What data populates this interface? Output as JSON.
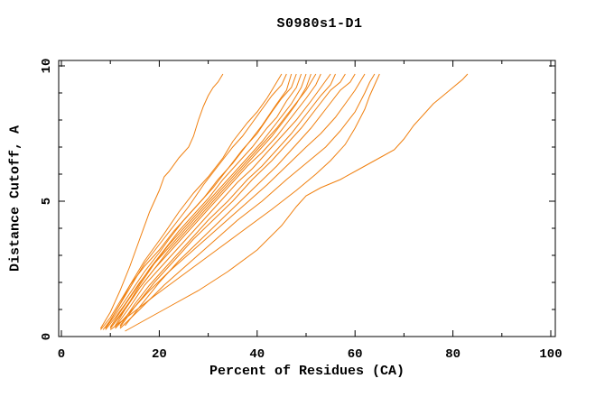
{
  "chart_data": {
    "type": "line",
    "title": "S0980s1-D1",
    "xlabel": "Percent of Residues (CA)",
    "ylabel": "Distance Cutoff, A",
    "xlim": [
      0,
      100
    ],
    "ylim": [
      0,
      10
    ],
    "x_major_ticks": [
      0,
      20,
      40,
      60,
      80,
      100
    ],
    "x_minor_ticks": [
      10,
      30,
      50,
      70,
      90
    ],
    "y_major_ticks": [
      0,
      5,
      10
    ],
    "y_minor_ticks": [
      1,
      2,
      3,
      4,
      6,
      7,
      8,
      9
    ],
    "grid": false,
    "legend": "none",
    "frame_color": "#000000",
    "line_color": "#F08010",
    "series": [
      [
        [
          8,
          0.3
        ],
        [
          9,
          0.6
        ],
        [
          10,
          0.9
        ],
        [
          12,
          1.7
        ],
        [
          14,
          2.6
        ],
        [
          16,
          3.6
        ],
        [
          18,
          4.6
        ],
        [
          20,
          5.4
        ],
        [
          21,
          5.9
        ],
        [
          22,
          6.1
        ],
        [
          24,
          6.6
        ],
        [
          26,
          7.0
        ],
        [
          27,
          7.4
        ],
        [
          28,
          8.0
        ],
        [
          29,
          8.5
        ],
        [
          30,
          8.9
        ],
        [
          31,
          9.2
        ],
        [
          32,
          9.4
        ],
        [
          33,
          9.7
        ]
      ],
      [
        [
          8,
          0.25
        ],
        [
          10,
          0.7
        ],
        [
          11,
          1.0
        ],
        [
          13,
          1.6
        ],
        [
          15,
          2.2
        ],
        [
          17,
          2.8
        ],
        [
          19,
          3.3
        ],
        [
          21,
          3.8
        ],
        [
          24,
          4.6
        ],
        [
          27,
          5.3
        ],
        [
          30,
          5.9
        ],
        [
          33,
          6.6
        ],
        [
          35,
          7.2
        ],
        [
          38,
          7.9
        ],
        [
          40,
          8.3
        ],
        [
          42,
          8.8
        ],
        [
          43,
          9.1
        ],
        [
          44,
          9.4
        ],
        [
          45,
          9.7
        ]
      ],
      [
        [
          9,
          0.3
        ],
        [
          11,
          0.9
        ],
        [
          13,
          1.5
        ],
        [
          15,
          2.1
        ],
        [
          17,
          2.7
        ],
        [
          20,
          3.4
        ],
        [
          23,
          4.1
        ],
        [
          26,
          4.8
        ],
        [
          29,
          5.6
        ],
        [
          32,
          6.3
        ],
        [
          35,
          7.0
        ],
        [
          37,
          7.4
        ],
        [
          39,
          7.9
        ],
        [
          41,
          8.4
        ],
        [
          43,
          8.9
        ],
        [
          45,
          9.3
        ],
        [
          46,
          9.7
        ]
      ],
      [
        [
          8.5,
          0.25
        ],
        [
          10,
          0.6
        ],
        [
          12,
          1.2
        ],
        [
          14,
          1.9
        ],
        [
          17,
          2.6
        ],
        [
          20,
          3.2
        ],
        [
          23,
          3.9
        ],
        [
          26,
          4.5
        ],
        [
          29,
          5.1
        ],
        [
          32,
          5.8
        ],
        [
          35,
          6.4
        ],
        [
          38,
          7.1
        ],
        [
          41,
          7.8
        ],
        [
          44,
          8.6
        ],
        [
          46,
          9.1
        ],
        [
          47,
          9.7
        ]
      ],
      [
        [
          9,
          0.3
        ],
        [
          11,
          0.8
        ],
        [
          14,
          1.6
        ],
        [
          17,
          2.4
        ],
        [
          20,
          3.1
        ],
        [
          22,
          3.6
        ],
        [
          25,
          4.3
        ],
        [
          28,
          4.9
        ],
        [
          31,
          5.5
        ],
        [
          34,
          6.2
        ],
        [
          37,
          6.9
        ],
        [
          40,
          7.5
        ],
        [
          43,
          8.3
        ],
        [
          45,
          8.8
        ],
        [
          47,
          9.2
        ],
        [
          48,
          9.7
        ]
      ],
      [
        [
          10,
          0.35
        ],
        [
          12,
          0.9
        ],
        [
          15,
          1.7
        ],
        [
          18,
          2.5
        ],
        [
          21,
          3.2
        ],
        [
          24,
          3.9
        ],
        [
          27,
          4.5
        ],
        [
          30,
          5.1
        ],
        [
          33,
          5.8
        ],
        [
          36,
          6.4
        ],
        [
          39,
          7.0
        ],
        [
          42,
          7.7
        ],
        [
          44,
          8.1
        ],
        [
          46,
          8.7
        ],
        [
          48,
          9.2
        ],
        [
          49,
          9.7
        ]
      ],
      [
        [
          10,
          0.3
        ],
        [
          12,
          0.8
        ],
        [
          14,
          1.3
        ],
        [
          16,
          1.9
        ],
        [
          19,
          2.7
        ],
        [
          22,
          3.4
        ],
        [
          25,
          4.0
        ],
        [
          28,
          4.6
        ],
        [
          31,
          5.2
        ],
        [
          34,
          5.8
        ],
        [
          38,
          6.6
        ],
        [
          41,
          7.2
        ],
        [
          44,
          7.9
        ],
        [
          47,
          8.6
        ],
        [
          49,
          9.2
        ],
        [
          50,
          9.7
        ]
      ],
      [
        [
          11,
          0.4
        ],
        [
          13,
          1.0
        ],
        [
          16,
          1.8
        ],
        [
          19,
          2.5
        ],
        [
          22,
          3.2
        ],
        [
          25,
          3.8
        ],
        [
          28,
          4.4
        ],
        [
          31,
          5.0
        ],
        [
          34,
          5.6
        ],
        [
          37,
          6.2
        ],
        [
          40,
          6.8
        ],
        [
          43,
          7.4
        ],
        [
          46,
          8.1
        ],
        [
          48,
          8.6
        ],
        [
          50,
          9.2
        ],
        [
          51,
          9.7
        ]
      ],
      [
        [
          9,
          0.25
        ],
        [
          11,
          0.7
        ],
        [
          13,
          1.2
        ],
        [
          16,
          2.0
        ],
        [
          19,
          2.7
        ],
        [
          23,
          3.5
        ],
        [
          27,
          4.3
        ],
        [
          31,
          5.1
        ],
        [
          35,
          5.9
        ],
        [
          38,
          6.5
        ],
        [
          41,
          7.1
        ],
        [
          44,
          7.7
        ],
        [
          47,
          8.4
        ],
        [
          50,
          9.1
        ],
        [
          52,
          9.7
        ]
      ],
      [
        [
          10,
          0.3
        ],
        [
          13,
          1.0
        ],
        [
          16,
          1.8
        ],
        [
          19,
          2.5
        ],
        [
          23,
          3.3
        ],
        [
          27,
          4.1
        ],
        [
          31,
          4.9
        ],
        [
          35,
          5.7
        ],
        [
          38,
          6.3
        ],
        [
          41,
          6.8
        ],
        [
          44,
          7.4
        ],
        [
          47,
          8.1
        ],
        [
          50,
          8.8
        ],
        [
          52,
          9.3
        ],
        [
          53,
          9.7
        ]
      ],
      [
        [
          11,
          0.35
        ],
        [
          14,
          1.1
        ],
        [
          17,
          1.9
        ],
        [
          21,
          2.7
        ],
        [
          25,
          3.5
        ],
        [
          29,
          4.3
        ],
        [
          33,
          5.1
        ],
        [
          36,
          5.7
        ],
        [
          39,
          6.2
        ],
        [
          42,
          6.8
        ],
        [
          45,
          7.4
        ],
        [
          48,
          8.0
        ],
        [
          51,
          8.7
        ],
        [
          53,
          9.2
        ],
        [
          55,
          9.7
        ]
      ],
      [
        [
          12,
          0.4
        ],
        [
          15,
          1.2
        ],
        [
          18,
          1.9
        ],
        [
          22,
          2.7
        ],
        [
          26,
          3.5
        ],
        [
          30,
          4.3
        ],
        [
          34,
          5.0
        ],
        [
          38,
          5.8
        ],
        [
          41,
          6.3
        ],
        [
          44,
          6.9
        ],
        [
          47,
          7.5
        ],
        [
          50,
          8.2
        ],
        [
          53,
          8.9
        ],
        [
          55,
          9.3
        ],
        [
          56,
          9.7
        ]
      ],
      [
        [
          12,
          0.35
        ],
        [
          15,
          1.1
        ],
        [
          19,
          2.0
        ],
        [
          23,
          2.8
        ],
        [
          27,
          3.6
        ],
        [
          31,
          4.3
        ],
        [
          35,
          5.0
        ],
        [
          39,
          5.8
        ],
        [
          43,
          6.5
        ],
        [
          46,
          7.1
        ],
        [
          49,
          7.7
        ],
        [
          52,
          8.4
        ],
        [
          55,
          9.1
        ],
        [
          57,
          9.4
        ],
        [
          58,
          9.7
        ]
      ],
      [
        [
          13,
          0.4
        ],
        [
          16,
          1.1
        ],
        [
          20,
          2.0
        ],
        [
          24,
          2.8
        ],
        [
          28,
          3.5
        ],
        [
          32,
          4.2
        ],
        [
          36,
          4.9
        ],
        [
          40,
          5.6
        ],
        [
          44,
          6.3
        ],
        [
          48,
          7.1
        ],
        [
          51,
          7.7
        ],
        [
          54,
          8.4
        ],
        [
          57,
          9.1
        ],
        [
          59,
          9.4
        ],
        [
          60,
          9.7
        ]
      ],
      [
        [
          11,
          0.3
        ],
        [
          14,
          0.9
        ],
        [
          18,
          1.7
        ],
        [
          22,
          2.4
        ],
        [
          27,
          3.2
        ],
        [
          32,
          4.0
        ],
        [
          37,
          4.8
        ],
        [
          42,
          5.6
        ],
        [
          46,
          6.3
        ],
        [
          50,
          7.0
        ],
        [
          53,
          7.5
        ],
        [
          56,
          8.1
        ],
        [
          58,
          8.6
        ],
        [
          60,
          9.1
        ],
        [
          61,
          9.4
        ],
        [
          62,
          9.7
        ]
      ],
      [
        [
          12,
          0.3
        ],
        [
          16,
          1.0
        ],
        [
          21,
          1.9
        ],
        [
          26,
          2.7
        ],
        [
          31,
          3.5
        ],
        [
          36,
          4.3
        ],
        [
          41,
          5.0
        ],
        [
          46,
          5.8
        ],
        [
          50,
          6.4
        ],
        [
          54,
          7.0
        ],
        [
          57,
          7.6
        ],
        [
          60,
          8.3
        ],
        [
          62,
          9.0
        ],
        [
          63,
          9.4
        ],
        [
          64,
          9.7
        ]
      ],
      [
        [
          10,
          0.25
        ],
        [
          14,
          0.8
        ],
        [
          19,
          1.5
        ],
        [
          25,
          2.3
        ],
        [
          31,
          3.1
        ],
        [
          37,
          3.9
        ],
        [
          43,
          4.7
        ],
        [
          48,
          5.4
        ],
        [
          52,
          6.0
        ],
        [
          55,
          6.5
        ],
        [
          58,
          7.1
        ],
        [
          60,
          7.7
        ],
        [
          62,
          8.4
        ],
        [
          63,
          8.9
        ],
        [
          64,
          9.3
        ],
        [
          65,
          9.7
        ]
      ],
      [
        [
          13,
          0.2
        ],
        [
          17,
          0.6
        ],
        [
          22,
          1.1
        ],
        [
          28,
          1.7
        ],
        [
          34,
          2.4
        ],
        [
          40,
          3.2
        ],
        [
          45,
          4.1
        ],
        [
          48,
          4.8
        ],
        [
          50,
          5.2
        ],
        [
          53,
          5.5
        ],
        [
          57,
          5.8
        ],
        [
          61,
          6.2
        ],
        [
          65,
          6.6
        ],
        [
          68,
          6.9
        ],
        [
          70,
          7.3
        ],
        [
          72,
          7.8
        ],
        [
          74,
          8.2
        ],
        [
          76,
          8.6
        ],
        [
          78,
          8.9
        ],
        [
          80,
          9.2
        ],
        [
          82,
          9.5
        ],
        [
          83,
          9.7
        ]
      ]
    ]
  }
}
